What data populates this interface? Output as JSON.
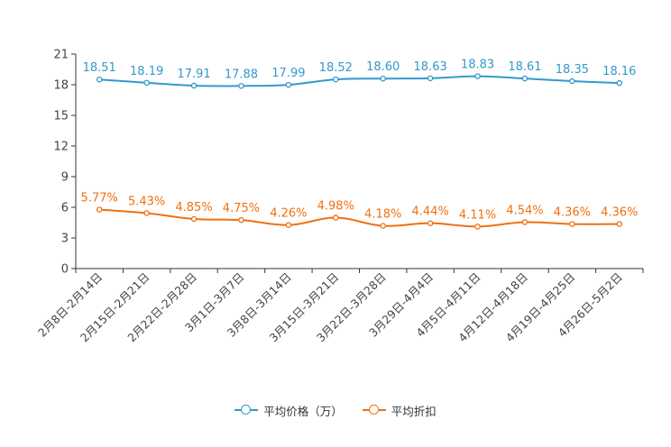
{
  "chart_data": {
    "type": "line",
    "title": "",
    "xlabel": "",
    "ylabel": "",
    "ylim": [
      0,
      21
    ],
    "yticks": [
      0,
      3,
      6,
      9,
      12,
      15,
      18,
      21
    ],
    "grid": false,
    "legend_position": "bottom-center",
    "categories": [
      "2月8日-2月14日",
      "2月15日-2月21日",
      "2月22日-2月28日",
      "3月1日-3月7日",
      "3月8日-3月14日",
      "3月15日-3月21日",
      "3月22日-3月28日",
      "3月29日-4月4日",
      "4月5日-4月11日",
      "4月12日-4月18日",
      "4月19日-4月25日",
      "4月26日-5月2日"
    ],
    "series": [
      {
        "name": "平均价格（万）",
        "color": "#3399cc",
        "values": [
          18.51,
          18.19,
          17.91,
          17.88,
          17.99,
          18.52,
          18.6,
          18.63,
          18.83,
          18.61,
          18.35,
          18.16
        ],
        "labels": [
          "18.51",
          "18.19",
          "17.91",
          "17.88",
          "17.99",
          "18.52",
          "18.60",
          "18.63",
          "18.83",
          "18.61",
          "18.35",
          "18.16"
        ]
      },
      {
        "name": "平均折扣",
        "color": "#f07010",
        "values": [
          5.77,
          5.43,
          4.85,
          4.75,
          4.26,
          4.98,
          4.18,
          4.44,
          4.11,
          4.54,
          4.36,
          4.36
        ],
        "labels": [
          "5.77%",
          "5.43%",
          "4.85%",
          "4.75%",
          "4.26%",
          "4.98%",
          "4.18%",
          "4.44%",
          "4.11%",
          "4.54%",
          "4.36%",
          "4.36%"
        ]
      }
    ]
  }
}
